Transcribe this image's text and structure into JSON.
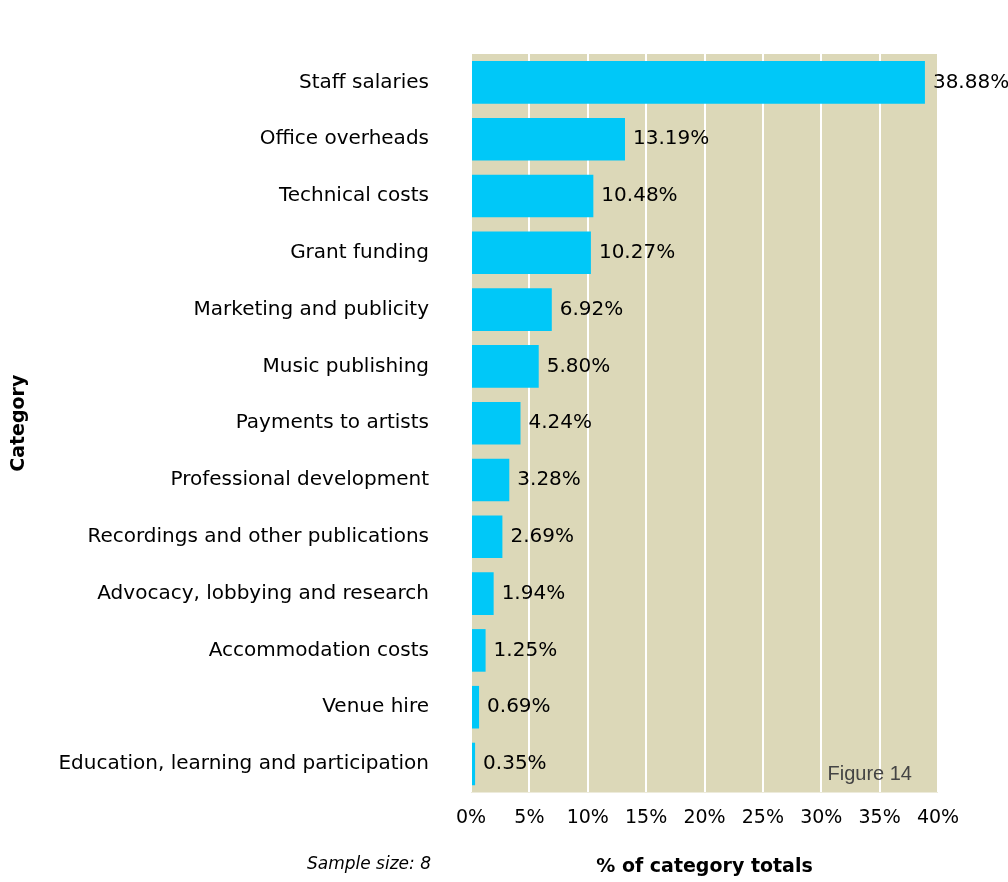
{
  "chart_data": {
    "type": "bar",
    "orientation": "horizontal",
    "xlabel": "% of category totals",
    "ylabel": "Category",
    "categories": [
      "Staff salaries",
      "Office overheads",
      "Technical costs",
      "Grant funding",
      "Marketing and publicity",
      "Music publishing",
      "Payments to artists",
      "Professional development",
      "Recordings and other publications",
      "Advocacy, lobbying and research",
      "Accommodation costs",
      "Venue hire",
      "Education, learning and participation"
    ],
    "values": [
      38.88,
      13.19,
      10.48,
      10.27,
      6.92,
      5.8,
      4.24,
      3.28,
      2.69,
      1.94,
      1.25,
      0.69,
      0.35
    ],
    "value_labels": [
      "38.88%",
      "13.19%",
      "10.48%",
      "10.27%",
      "6.92%",
      "5.80%",
      "4.24%",
      "3.28%",
      "2.69%",
      "1.94%",
      "1.25%",
      "0.69%",
      "0.35%"
    ],
    "color": "#00c8f8",
    "xlim": [
      0,
      40
    ],
    "xticks": [
      {
        "value": 0,
        "label": "0%"
      },
      {
        "value": 5,
        "label": "5%"
      },
      {
        "value": 10,
        "label": "10%"
      },
      {
        "value": 15,
        "label": "15%"
      },
      {
        "value": 20,
        "label": "20%"
      },
      {
        "value": 25,
        "label": "25%"
      },
      {
        "value": 30,
        "label": "30%"
      },
      {
        "value": 35,
        "label": "35%"
      },
      {
        "value": 40,
        "label": "40%"
      }
    ],
    "grid": "x",
    "legend": false,
    "annotations": [
      "Figure 14",
      "Sample size: 8"
    ]
  }
}
